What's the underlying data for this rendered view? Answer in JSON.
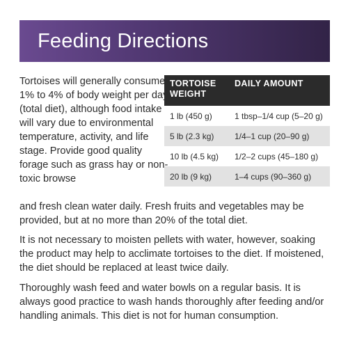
{
  "header": {
    "title": "Feeding Directions"
  },
  "intro": {
    "text_wrapped": "Tortoises will generally consume 1% to 4% of body weight per day (total diet), although food intake will vary due to environmental temperature, activity, and life stage. Provide good quality forage such as grass hay or non-toxic browse",
    "text_full": "and fresh clean water daily. Fresh fruits and vegetables may be provided, but at no more than 20% of the total diet."
  },
  "table": {
    "headers": [
      "TORTOISE WEIGHT",
      "DAILY AMOUNT"
    ],
    "rows": [
      {
        "weight": "1 lb (450 g)",
        "amount": "1 tbsp–1/4 cup (5–20 g)"
      },
      {
        "weight": "5 lb (2.3 kg)",
        "amount": "1/4–1 cup (20–90 g)"
      },
      {
        "weight": "10 lb (4.5 kg)",
        "amount": "1/2–2 cups (45–180 g)"
      },
      {
        "weight": "20 lb (9 kg)",
        "amount": "1–4 cups (90–360 g)"
      }
    ]
  },
  "paragraphs": [
    "It is not necessary to moisten pellets with water, however, soaking the product may help to acclimate tortoises to the diet. If moistened, the diet should be replaced at least twice daily.",
    "Thoroughly wash feed and water bowls on a regular basis. It is always good practice to wash hands thoroughly after feeding and/or handling animals. This diet is not for human consumption."
  ],
  "colors": {
    "banner": "#543a76",
    "table_header": "#2b2b2b",
    "row_alt": "#e2e2e2"
  }
}
